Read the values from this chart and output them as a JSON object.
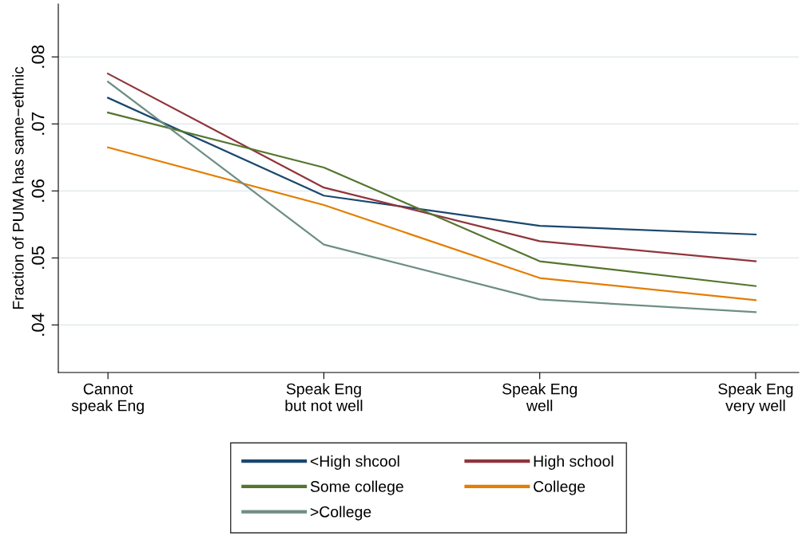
{
  "chart_data": {
    "type": "line",
    "ylabel": "Fraction of PUMA has same−ethnic",
    "categories": [
      "Cannot\nspeak Eng",
      "Speak Eng\nbut not well",
      "Speak Eng\nwell",
      "Speak Eng\nvery well"
    ],
    "series": [
      {
        "name": "<High shcool",
        "color": "#1a476f",
        "values": [
          0.0739,
          0.0593,
          0.0548,
          0.0535
        ]
      },
      {
        "name": "High school",
        "color": "#90353b",
        "values": [
          0.0775,
          0.0605,
          0.0525,
          0.0495
        ]
      },
      {
        "name": "Some college",
        "color": "#55752f",
        "values": [
          0.0717,
          0.0635,
          0.0495,
          0.0458
        ]
      },
      {
        "name": "College",
        "color": "#e37e00",
        "values": [
          0.0665,
          0.0579,
          0.047,
          0.0437
        ]
      },
      {
        "name": ">College",
        "color": "#6e8e84",
        "values": [
          0.0763,
          0.052,
          0.0438,
          0.0419
        ]
      }
    ],
    "ylim": [
      0.0329,
      0.0879
    ],
    "yticks": [
      {
        "value": 0.04,
        "label": ".04"
      },
      {
        "value": 0.05,
        "label": ".05"
      },
      {
        "value": 0.06,
        "label": ".06"
      },
      {
        "value": 0.07,
        "label": ".07"
      },
      {
        "value": 0.08,
        "label": ".08"
      }
    ],
    "grid": "y",
    "legend": "bottom",
    "marker": "none",
    "line_style": "solid"
  }
}
